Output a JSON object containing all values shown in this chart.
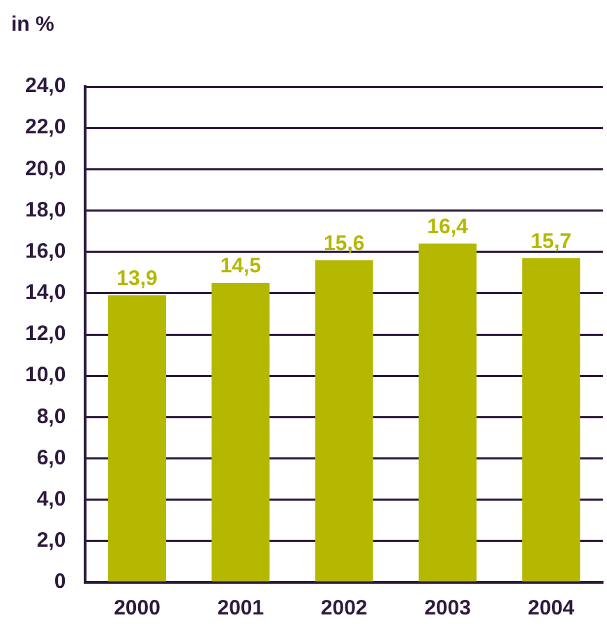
{
  "chart_data": {
    "type": "bar",
    "ylabel": "in %",
    "categories": [
      "2000",
      "2001",
      "2002",
      "2003",
      "2004"
    ],
    "values": [
      13.9,
      14.5,
      15.6,
      16.4,
      15.7
    ],
    "value_labels": [
      "13,9",
      "14,5",
      "15,6",
      "16,4",
      "15,7"
    ],
    "color": "#b5b800",
    "ylim": [
      0,
      24
    ],
    "yticks": [
      {
        "value": 0,
        "label": "0"
      },
      {
        "value": 2,
        "label": "2,0"
      },
      {
        "value": 4,
        "label": "4,0"
      },
      {
        "value": 6,
        "label": "6,0"
      },
      {
        "value": 8,
        "label": "8,0"
      },
      {
        "value": 10,
        "label": "10,0"
      },
      {
        "value": 12,
        "label": "12,0"
      },
      {
        "value": 14,
        "label": "14,0"
      },
      {
        "value": 16,
        "label": "16,0"
      },
      {
        "value": 18,
        "label": "18,0"
      },
      {
        "value": 20,
        "label": "20,0"
      },
      {
        "value": 22,
        "label": "22,0"
      },
      {
        "value": 24,
        "label": "24,0"
      }
    ],
    "grid": "y",
    "legend": false
  }
}
